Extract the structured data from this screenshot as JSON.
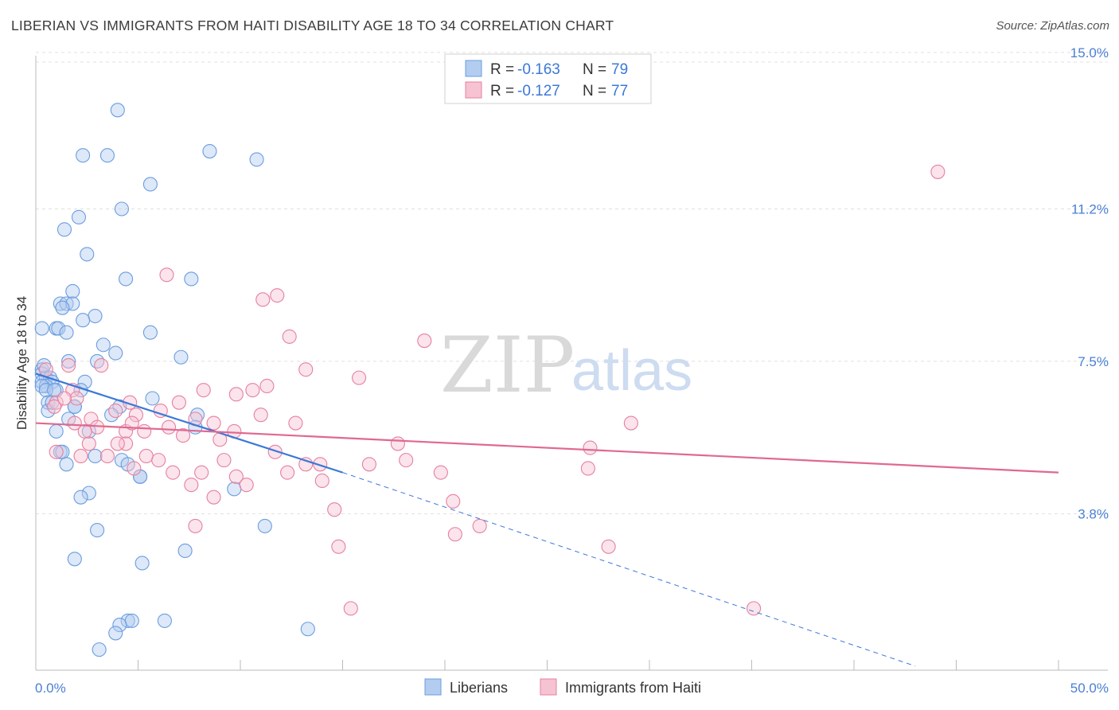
{
  "title": "LIBERIAN VS IMMIGRANTS FROM HAITI DISABILITY AGE 18 TO 34 CORRELATION CHART",
  "source": "Source: ZipAtlas.com",
  "watermark": {
    "zip": "ZIP",
    "atlas": "atlas"
  },
  "chart_data": {
    "type": "scatter",
    "ylabel": "Disability Age 18 to 34",
    "xlim": [
      0,
      50
    ],
    "ylim": [
      0,
      15.5
    ],
    "x_tick_labels": [
      "0.0%",
      "50.0%"
    ],
    "y_ticks": [
      3.8,
      7.5,
      11.2,
      15.0
    ],
    "y_tick_labels": [
      "3.8%",
      "7.5%",
      "11.2%",
      "15.0%"
    ],
    "grid": true,
    "legend_position": "top-center",
    "legend": [
      {
        "r_label": "R =",
        "r_value": "-0.163",
        "n_label": "N =",
        "n_value": "79"
      },
      {
        "r_label": "R =",
        "r_value": "-0.127",
        "n_label": "N =",
        "n_value": "77"
      }
    ],
    "series": [
      {
        "name": "Liberians",
        "color": "#6a9de0",
        "fill": "#b3cdf0",
        "trend": {
          "x0": 0,
          "y0": 7.2,
          "x1": 15,
          "y1": 4.8,
          "dash_to_x": 43,
          "dash_to_y": 0.1
        },
        "points": [
          [
            4.0,
            13.6
          ],
          [
            8.5,
            12.6
          ],
          [
            2.3,
            12.5
          ],
          [
            3.5,
            12.5
          ],
          [
            10.8,
            12.4
          ],
          [
            5.6,
            11.8
          ],
          [
            4.2,
            11.2
          ],
          [
            2.1,
            11.0
          ],
          [
            1.4,
            10.7
          ],
          [
            2.5,
            10.1
          ],
          [
            4.4,
            9.5
          ],
          [
            7.6,
            9.5
          ],
          [
            1.8,
            9.2
          ],
          [
            1.2,
            8.9
          ],
          [
            1.5,
            8.9
          ],
          [
            1.8,
            8.9
          ],
          [
            1.3,
            8.8
          ],
          [
            2.9,
            8.6
          ],
          [
            2.3,
            8.5
          ],
          [
            0.3,
            8.3
          ],
          [
            1.0,
            8.3
          ],
          [
            1.1,
            8.3
          ],
          [
            1.5,
            8.2
          ],
          [
            5.6,
            8.2
          ],
          [
            3.3,
            7.9
          ],
          [
            3.9,
            7.7
          ],
          [
            7.1,
            7.6
          ],
          [
            1.6,
            7.5
          ],
          [
            3.0,
            7.5
          ],
          [
            0.3,
            7.3
          ],
          [
            0.3,
            7.2
          ],
          [
            0.5,
            7.1
          ],
          [
            0.7,
            7.1
          ],
          [
            0.8,
            7.0
          ],
          [
            0.3,
            7.0
          ],
          [
            2.4,
            7.0
          ],
          [
            0.5,
            6.9
          ],
          [
            1.0,
            6.8
          ],
          [
            0.3,
            6.9
          ],
          [
            0.5,
            6.8
          ],
          [
            2.2,
            6.8
          ],
          [
            0.6,
            6.5
          ],
          [
            1.9,
            6.4
          ],
          [
            1.9,
            6.4
          ],
          [
            5.7,
            6.6
          ],
          [
            4.1,
            6.4
          ],
          [
            0.6,
            6.3
          ],
          [
            0.8,
            6.5
          ],
          [
            7.9,
            6.2
          ],
          [
            3.7,
            6.2
          ],
          [
            7.8,
            5.9
          ],
          [
            1.0,
            5.8
          ],
          [
            1.2,
            5.3
          ],
          [
            1.3,
            5.3
          ],
          [
            2.9,
            5.2
          ],
          [
            4.2,
            5.1
          ],
          [
            1.5,
            5.0
          ],
          [
            4.5,
            5.0
          ],
          [
            5.1,
            4.7
          ],
          [
            5.1,
            4.7
          ],
          [
            9.7,
            4.4
          ],
          [
            2.6,
            4.3
          ],
          [
            2.2,
            4.2
          ],
          [
            11.2,
            3.5
          ],
          [
            3.0,
            3.4
          ],
          [
            7.3,
            2.9
          ],
          [
            1.9,
            2.7
          ],
          [
            5.2,
            2.6
          ],
          [
            4.5,
            1.2
          ],
          [
            4.7,
            1.2
          ],
          [
            6.3,
            1.2
          ],
          [
            4.1,
            1.1
          ],
          [
            13.3,
            1.0
          ],
          [
            3.9,
            0.9
          ],
          [
            3.1,
            0.5
          ],
          [
            0.9,
            6.8
          ],
          [
            0.4,
            7.4
          ],
          [
            1.6,
            6.1
          ],
          [
            2.6,
            5.8
          ]
        ]
      },
      {
        "name": "Immigrants from Haiti",
        "color": "#e6809f",
        "fill": "#f6c3d2",
        "trend": {
          "x0": 0,
          "y0": 6.0,
          "x1": 50,
          "y1": 4.8
        },
        "points": [
          [
            44.1,
            12.1
          ],
          [
            6.4,
            9.6
          ],
          [
            11.8,
            9.1
          ],
          [
            11.1,
            9.0
          ],
          [
            12.4,
            8.1
          ],
          [
            19.0,
            8.0
          ],
          [
            13.2,
            7.3
          ],
          [
            1.6,
            7.4
          ],
          [
            3.2,
            7.4
          ],
          [
            15.8,
            7.1
          ],
          [
            0.5,
            7.3
          ],
          [
            11.3,
            6.9
          ],
          [
            10.6,
            6.8
          ],
          [
            8.2,
            6.8
          ],
          [
            9.8,
            6.7
          ],
          [
            1.8,
            6.8
          ],
          [
            1.0,
            6.5
          ],
          [
            0.9,
            6.4
          ],
          [
            4.6,
            6.5
          ],
          [
            7.0,
            6.5
          ],
          [
            3.9,
            6.3
          ],
          [
            4.9,
            6.2
          ],
          [
            6.1,
            6.3
          ],
          [
            11.0,
            6.2
          ],
          [
            2.7,
            6.1
          ],
          [
            7.8,
            6.1
          ],
          [
            8.7,
            6.0
          ],
          [
            12.7,
            6.0
          ],
          [
            29.1,
            6.0
          ],
          [
            1.9,
            6.0
          ],
          [
            3.0,
            5.9
          ],
          [
            6.5,
            5.9
          ],
          [
            5.3,
            5.8
          ],
          [
            9.7,
            5.8
          ],
          [
            2.4,
            5.8
          ],
          [
            4.4,
            5.8
          ],
          [
            7.2,
            5.7
          ],
          [
            9.0,
            5.6
          ],
          [
            17.7,
            5.5
          ],
          [
            27.1,
            5.4
          ],
          [
            4.4,
            5.5
          ],
          [
            2.6,
            5.5
          ],
          [
            4.0,
            5.5
          ],
          [
            11.7,
            5.3
          ],
          [
            1.0,
            5.3
          ],
          [
            5.4,
            5.2
          ],
          [
            3.5,
            5.2
          ],
          [
            6.0,
            5.1
          ],
          [
            2.2,
            5.2
          ],
          [
            9.2,
            5.1
          ],
          [
            18.1,
            5.1
          ],
          [
            16.3,
            5.0
          ],
          [
            13.9,
            5.0
          ],
          [
            13.2,
            5.0
          ],
          [
            4.8,
            4.9
          ],
          [
            27.0,
            4.9
          ],
          [
            19.8,
            4.8
          ],
          [
            12.3,
            4.8
          ],
          [
            8.1,
            4.8
          ],
          [
            6.7,
            4.8
          ],
          [
            9.8,
            4.7
          ],
          [
            14.0,
            4.6
          ],
          [
            10.3,
            4.5
          ],
          [
            7.6,
            4.5
          ],
          [
            8.7,
            4.2
          ],
          [
            20.4,
            4.1
          ],
          [
            14.6,
            3.9
          ],
          [
            21.7,
            3.5
          ],
          [
            7.8,
            3.5
          ],
          [
            20.5,
            3.3
          ],
          [
            14.8,
            3.0
          ],
          [
            28.0,
            3.0
          ],
          [
            15.4,
            1.5
          ],
          [
            35.1,
            1.5
          ],
          [
            4.7,
            6.0
          ],
          [
            2.0,
            6.6
          ],
          [
            1.4,
            6.6
          ]
        ]
      }
    ]
  },
  "bottom_legend": [
    "Liberians",
    "Immigrants from Haiti"
  ]
}
